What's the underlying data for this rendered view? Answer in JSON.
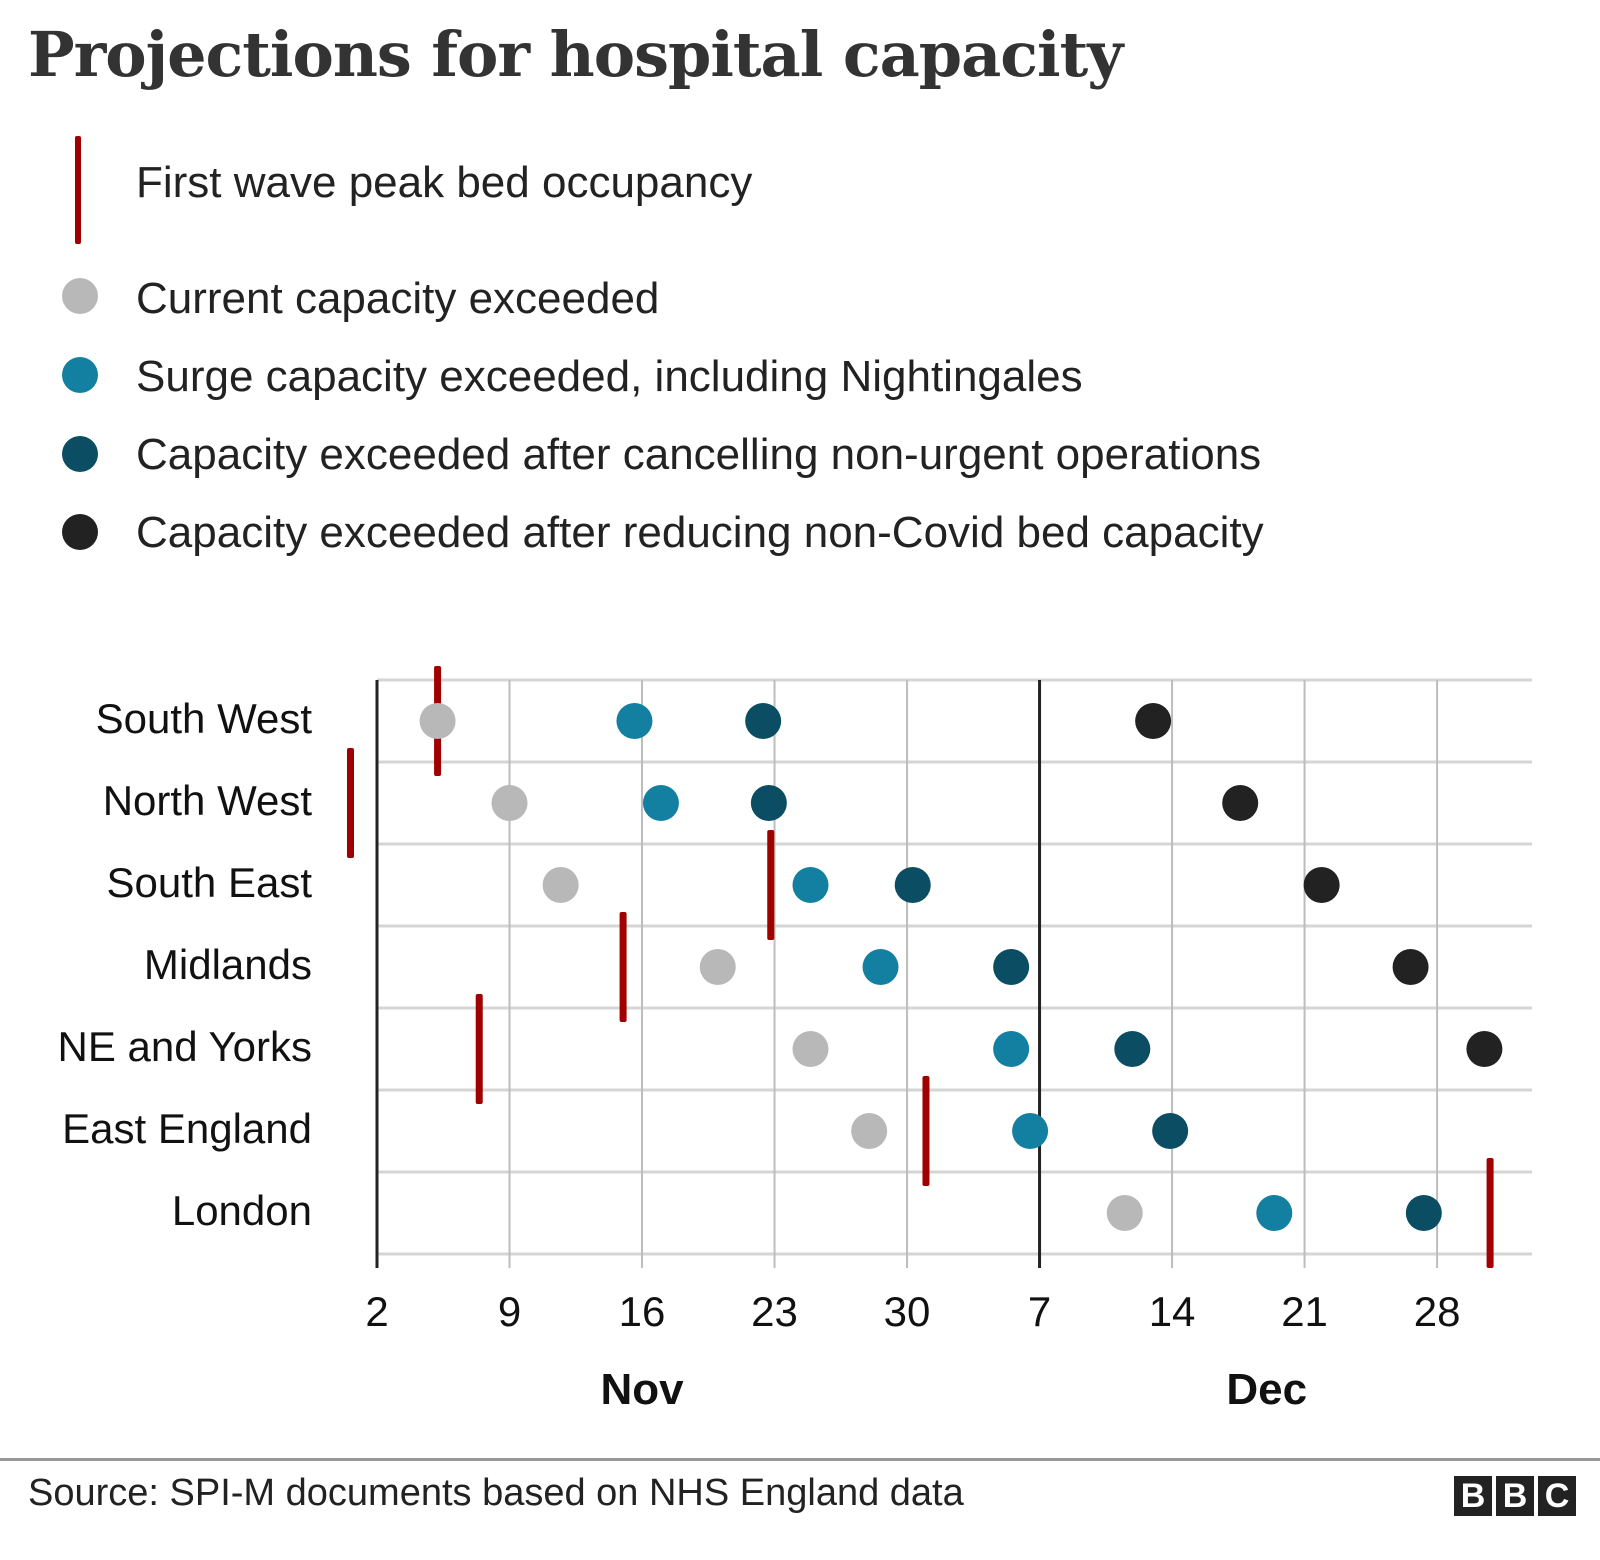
{
  "header": {
    "title": "Projections for hospital capacity"
  },
  "legend": {
    "items": [
      {
        "key": "peak",
        "label": "First wave peak bed occupancy",
        "symbol": "vertical-line",
        "color": "#a00000"
      },
      {
        "key": "current",
        "label": "Current capacity exceeded",
        "symbol": "dot",
        "color": "#b8b8b8"
      },
      {
        "key": "surge",
        "label": "Surge capacity exceeded, including Nightingales",
        "symbol": "dot",
        "color": "#1380a1"
      },
      {
        "key": "cancel",
        "label": "Capacity exceeded after cancelling non-urgent operations",
        "symbol": "dot",
        "color": "#0b4d62"
      },
      {
        "key": "reduce",
        "label": "Capacity exceeded after reducing non-Covid bed capacity",
        "symbol": "dot",
        "color": "#222222"
      }
    ]
  },
  "chart_data": {
    "type": "scatter",
    "title": "Projections for hospital capacity",
    "x_units": "days since 2 Nov",
    "xlim": [
      -1.5,
      61
    ],
    "x_ticks": [
      0,
      7,
      14,
      21,
      28,
      35,
      42,
      49,
      56
    ],
    "x_tick_labels": [
      "2",
      "9",
      "16",
      "23",
      "30",
      "7",
      "14",
      "21",
      "28"
    ],
    "month_labels": [
      {
        "label": "Nov",
        "center": 14
      },
      {
        "label": "Dec",
        "center": 47
      }
    ],
    "month_divider": 35,
    "grid": true,
    "categories": [
      "South West",
      "North West",
      "South East",
      "Midlands",
      "NE and Yorks",
      "East England",
      "London"
    ],
    "series": [
      {
        "name": "First wave peak bed occupancy",
        "key": "peak",
        "values": [
          3.2,
          -1.4,
          20.8,
          13,
          5.4,
          29,
          58.8
        ]
      },
      {
        "name": "Current capacity exceeded",
        "key": "current",
        "values": [
          3.2,
          7,
          9.7,
          18,
          22.9,
          26,
          39.5
        ]
      },
      {
        "name": "Surge capacity exceeded, including Nightingales",
        "key": "surge",
        "values": [
          13.6,
          15,
          22.9,
          26.6,
          33.5,
          34.5,
          47.4
        ]
      },
      {
        "name": "Capacity exceeded after cancelling non-urgent operations",
        "key": "cancel",
        "values": [
          20.4,
          20.7,
          28.3,
          33.5,
          39.9,
          41.9,
          55.3
        ]
      },
      {
        "name": "Capacity exceeded after reducing non-Covid bed capacity",
        "key": "reduce",
        "values": [
          41,
          45.6,
          49.9,
          54.6,
          58.5,
          null,
          null
        ]
      }
    ],
    "xlabel": "",
    "ylabel": ""
  },
  "footer": {
    "source": "Source: SPI-M documents based on NHS England data",
    "logo_letters": [
      "B",
      "B",
      "C"
    ]
  }
}
